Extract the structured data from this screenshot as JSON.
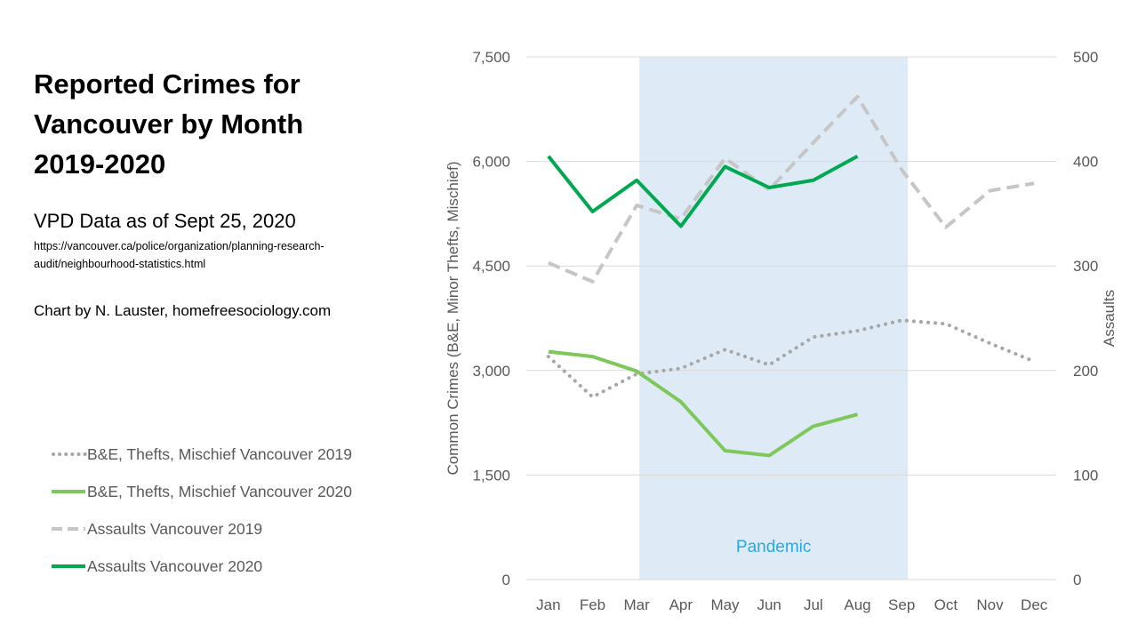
{
  "header": {
    "title_lines": [
      "Reported Crimes for",
      "Vancouver by Month",
      "2019-2020"
    ],
    "subtitle": "VPD Data as of Sept 25, 2020",
    "source_lines": [
      "https://vancouver.ca/police/organization/planning-research-",
      "audit/neighbourhood-statistics.html"
    ],
    "credit": "Chart by N. Lauster, homefreesociology.com"
  },
  "chart_data": {
    "type": "line",
    "categories": [
      "Jan",
      "Feb",
      "Mar",
      "Apr",
      "May",
      "Jun",
      "Jul",
      "Aug",
      "Sep",
      "Oct",
      "Nov",
      "Dec"
    ],
    "y_left": {
      "label": "Common Crimes (B&E, Minor Thefts, Mischief)",
      "ylim": [
        0,
        7500
      ],
      "ticks": [
        "0",
        "1,500",
        "3,000",
        "4,500",
        "6,000",
        "7,500"
      ],
      "tick_values": [
        0,
        1500,
        3000,
        4500,
        6000,
        7500
      ]
    },
    "y_right": {
      "label": "Assaults",
      "ylim": [
        0,
        500
      ],
      "ticks": [
        "0",
        "100",
        "200",
        "300",
        "400",
        "500"
      ],
      "tick_values": [
        0,
        100,
        200,
        300,
        400,
        500
      ]
    },
    "shaded_region": {
      "from": "Mar",
      "to": "Sep",
      "label": "Pandemic",
      "color": "#deebf7"
    },
    "grid": true,
    "legend_position": "left",
    "series": [
      {
        "name": "B&E, Thefts, Mischief Vancouver 2019",
        "axis": "left",
        "style": "dotted",
        "color": "#a6a6a6",
        "values": [
          3200,
          2620,
          2950,
          3030,
          3300,
          3080,
          3480,
          3570,
          3720,
          3670,
          3390,
          3130
        ]
      },
      {
        "name": "B&E, Thefts, Mischief Vancouver 2020",
        "axis": "left",
        "style": "solid",
        "color": "#7dc75b",
        "values": [
          3270,
          3200,
          2990,
          2550,
          1850,
          1780,
          2200,
          2370,
          null,
          null,
          null,
          null
        ]
      },
      {
        "name": "Assaults Vancouver 2019",
        "axis": "right",
        "style": "dashed",
        "color": "#c6c6c6",
        "values": [
          303,
          285,
          358,
          345,
          403,
          373,
          418,
          462,
          392,
          337,
          372,
          379
        ]
      },
      {
        "name": "Assaults Vancouver 2020",
        "axis": "right",
        "style": "solid",
        "color": "#00a850",
        "values": [
          405,
          352,
          382,
          338,
          395,
          375,
          382,
          405,
          null,
          null,
          null,
          null
        ]
      }
    ]
  }
}
